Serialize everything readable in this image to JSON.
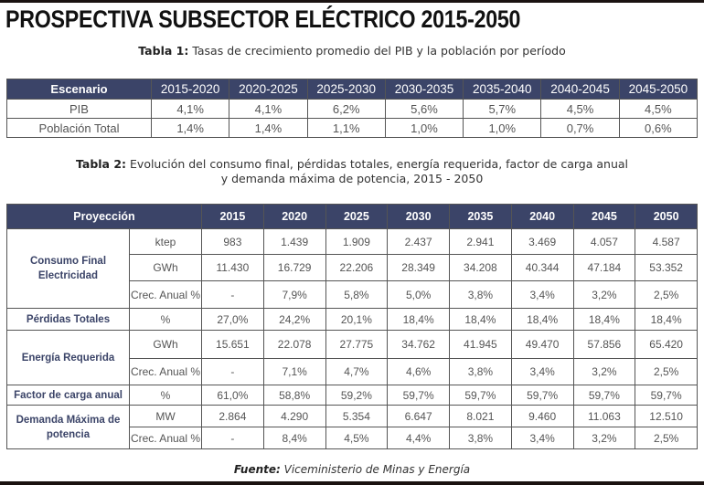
{
  "title": "PROSPECTIVA SUBSECTOR ELÉCTRICO 2015-2050",
  "table1": {
    "caption_label": "Tabla 1:",
    "caption_text": " Tasas de crecimiento promedio del PIB y la población por período",
    "headers": [
      "Escenario",
      "2015-2020",
      "2020-2025",
      "2025-2030",
      "2030-2035",
      "2035-2040",
      "2040-2045",
      "2045-2050"
    ],
    "rows": [
      {
        "label": "PIB",
        "values": [
          "4,1%",
          "4,1%",
          "6,2%",
          "5,6%",
          "5,7%",
          "4,5%",
          "4,5%"
        ]
      },
      {
        "label": "Población Total",
        "values": [
          "1,4%",
          "1,4%",
          "1,1%",
          "1,0%",
          "1,0%",
          "0,7%",
          "0,6%"
        ]
      }
    ]
  },
  "table2": {
    "caption_label": "Tabla 2:",
    "caption_line1": " Evolución del consumo final, pérdidas totales, energía requerida, factor de carga anual",
    "caption_line2": "y demanda máxima de potencia, 2015 - 2050",
    "header_label": "Proyección",
    "years": [
      "2015",
      "2020",
      "2025",
      "2030",
      "2035",
      "2040",
      "2045",
      "2050"
    ],
    "groups": [
      {
        "label": "Consumo Final Electricidad",
        "rows": [
          {
            "unit": "ktep",
            "values": [
              "983",
              "1.439",
              "1.909",
              "2.437",
              "2.941",
              "3.469",
              "4.057",
              "4.587"
            ]
          },
          {
            "unit": "GWh",
            "values": [
              "11.430",
              "16.729",
              "22.206",
              "28.349",
              "34.208",
              "40.344",
              "47.184",
              "53.352"
            ]
          },
          {
            "unit": "Crec. Anual %",
            "values": [
              "-",
              "7,9%",
              "5,8%",
              "5,0%",
              "3,8%",
              "3,4%",
              "3,2%",
              "2,5%"
            ]
          }
        ]
      },
      {
        "label": "Pérdidas Totales",
        "rows": [
          {
            "unit": "%",
            "values": [
              "27,0%",
              "24,2%",
              "20,1%",
              "18,4%",
              "18,4%",
              "18,4%",
              "18,4%",
              "18,4%"
            ]
          }
        ]
      },
      {
        "label": "Energía Requerida",
        "rows": [
          {
            "unit": "GWh",
            "values": [
              "15.651",
              "22.078",
              "27.775",
              "34.762",
              "41.945",
              "49.470",
              "57.856",
              "65.420"
            ]
          },
          {
            "unit": "Crec. Anual %",
            "values": [
              "-",
              "7,1%",
              "4,7%",
              "4,6%",
              "3,8%",
              "3,4%",
              "3,2%",
              "2,5%"
            ]
          }
        ]
      },
      {
        "label": "Factor de carga anual",
        "rows": [
          {
            "unit": "%",
            "values": [
              "61,0%",
              "58,8%",
              "59,2%",
              "59,7%",
              "59,7%",
              "59,7%",
              "59,7%",
              "59,7%"
            ]
          }
        ]
      },
      {
        "label": "Demanda Máxima de potencia",
        "rows": [
          {
            "unit": "MW",
            "values": [
              "2.864",
              "4.290",
              "5.354",
              "6.647",
              "8.021",
              "9.460",
              "11.063",
              "12.510"
            ]
          },
          {
            "unit": "Crec. Anual %",
            "values": [
              "-",
              "8,4%",
              "4,5%",
              "4,4%",
              "3,8%",
              "3,4%",
              "3,2%",
              "2,5%"
            ]
          }
        ]
      }
    ]
  },
  "source": {
    "label": "Fuente:",
    "text": " Viceministerio de Minas y Energía"
  },
  "colors": {
    "header_bg": "#3b4468",
    "group_label": "#3b4468",
    "bars": "#1a1210"
  }
}
